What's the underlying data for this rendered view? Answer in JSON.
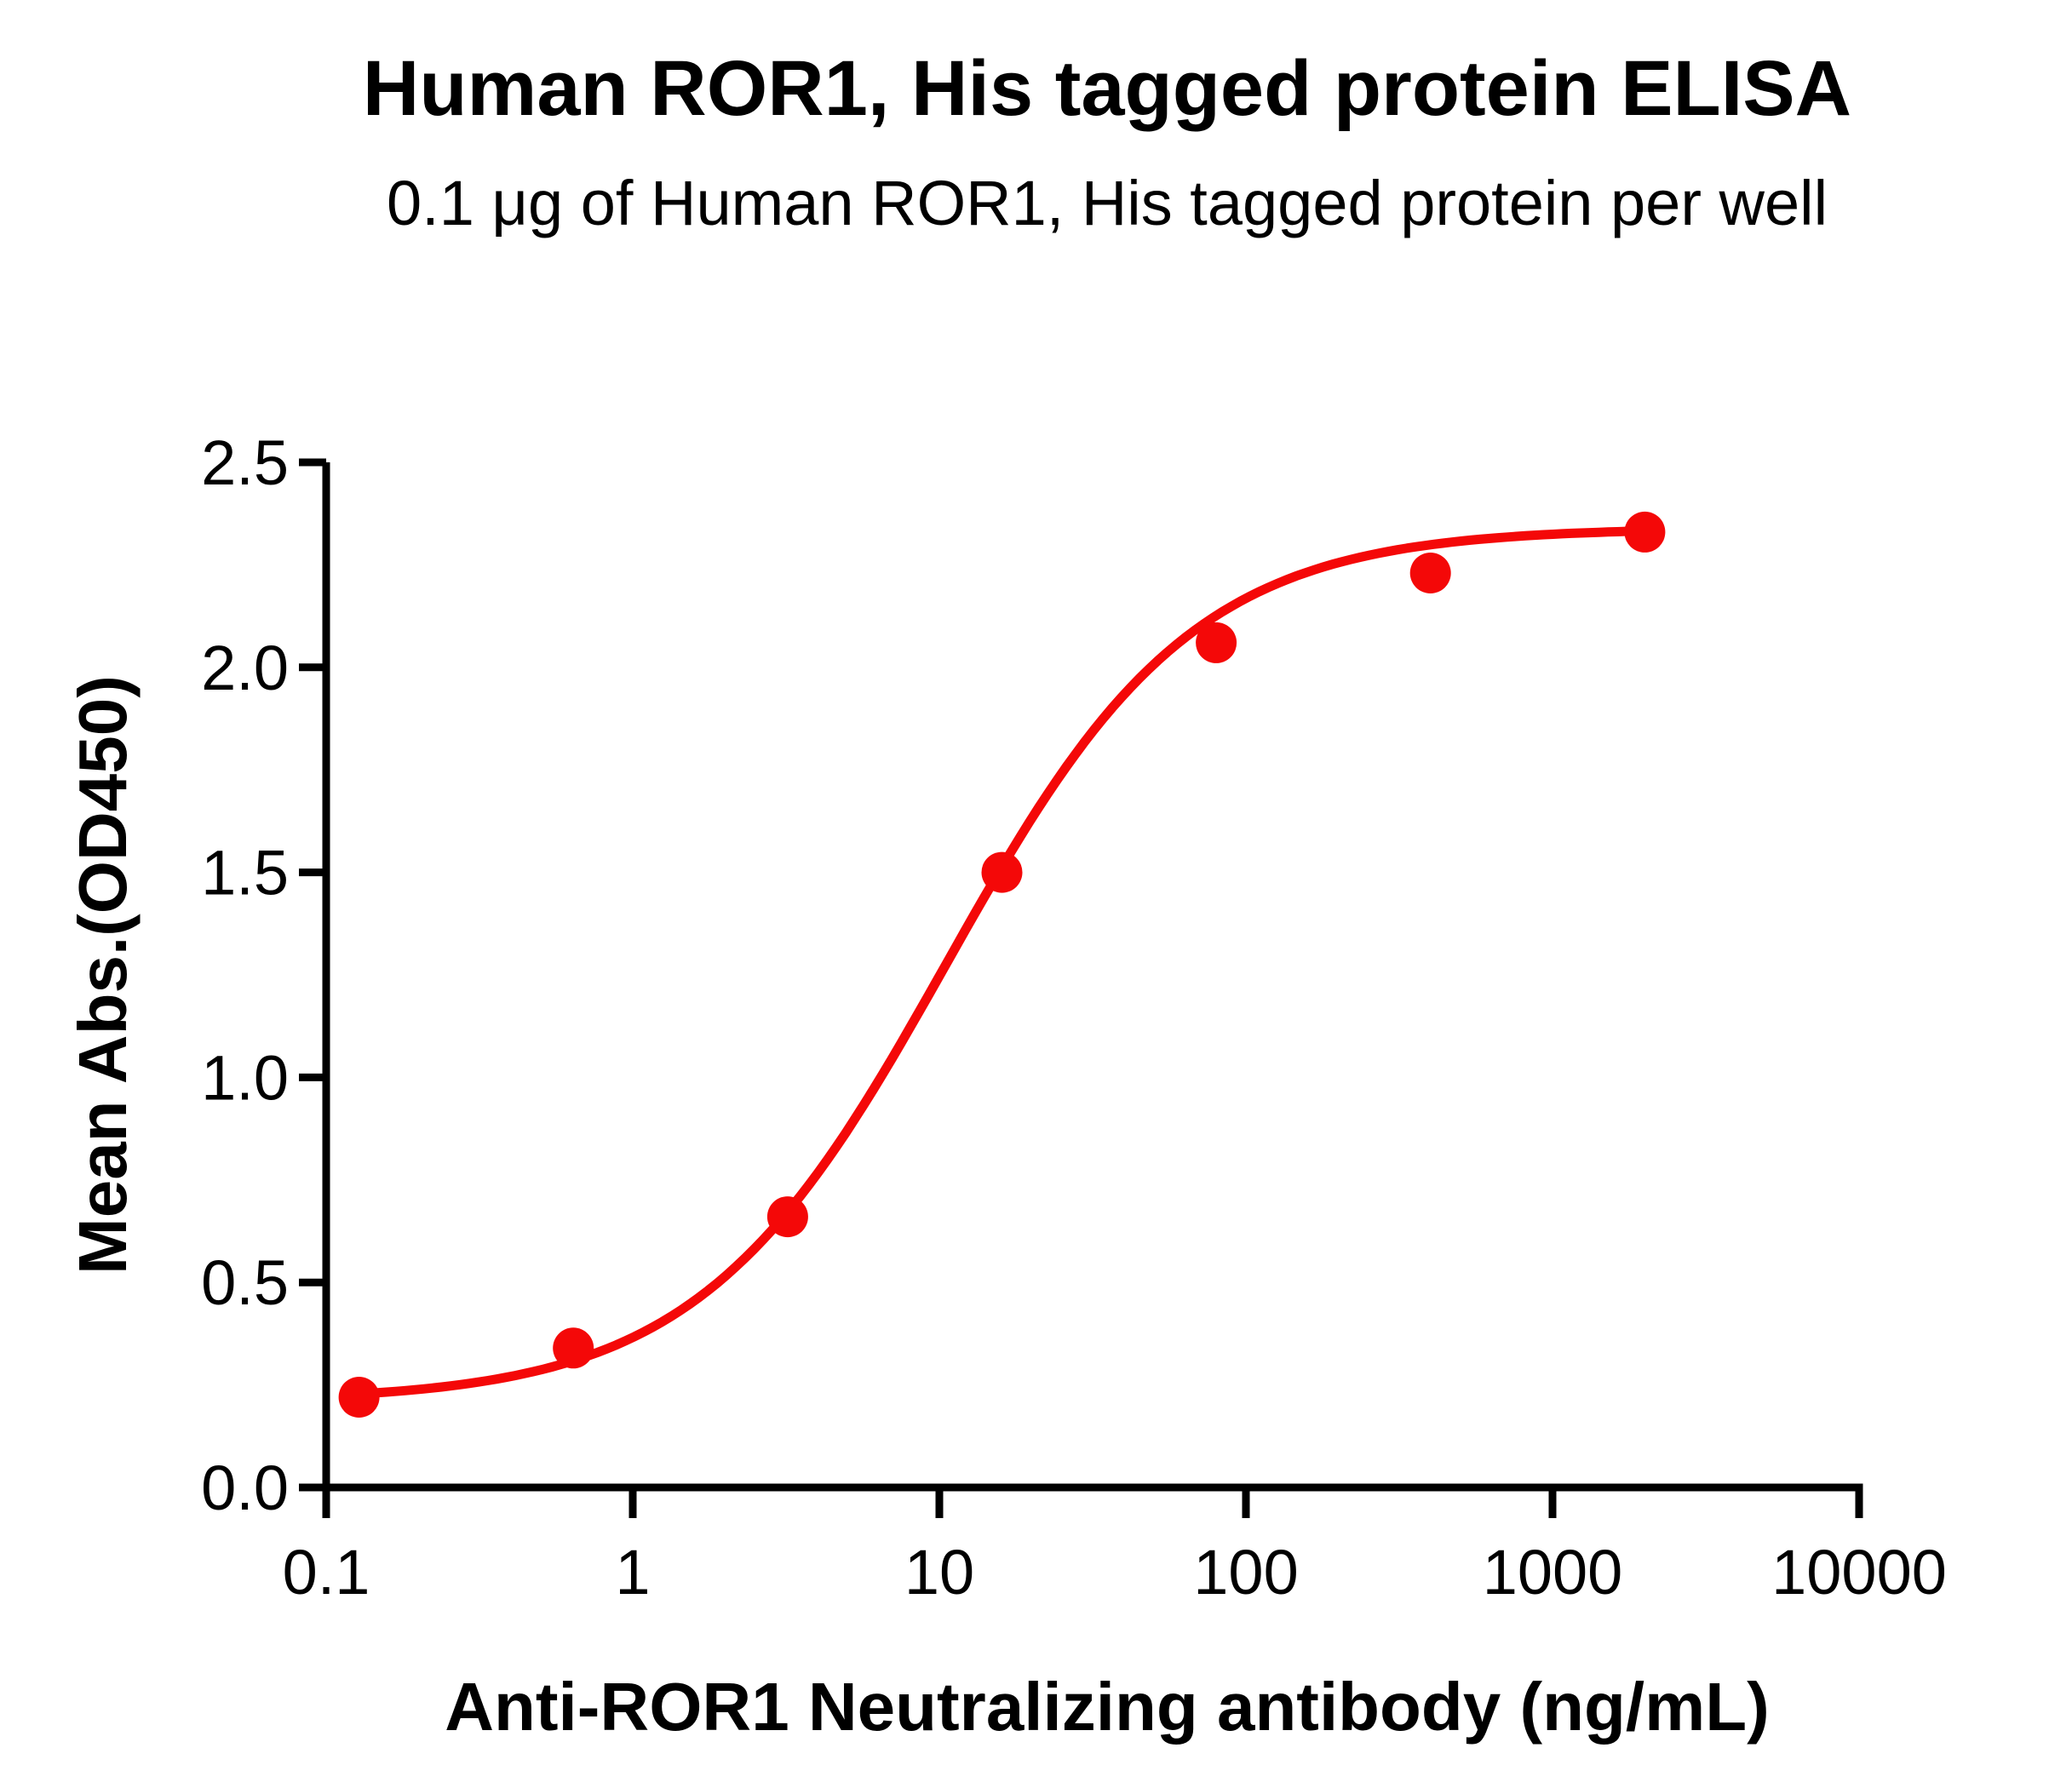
{
  "title": "Human ROR1, His tagged protein ELISA",
  "subtitle": "0.1 μg of Human ROR1, His tagged protein per well",
  "chart_data": {
    "type": "scatter",
    "title": "Human ROR1, His tagged protein ELISA",
    "subtitle": "0.1 μg of Human ROR1, His tagged protein per well",
    "xlabel": "Anti-ROR1 Neutralizing antibody (ng/mL)",
    "ylabel": "Mean Abs.(OD450)",
    "xscale": "log",
    "xlim": [
      0.1,
      10000
    ],
    "ylim": [
      0.0,
      2.5
    ],
    "grid": false,
    "legend": null,
    "x_tick_values": [
      0.1,
      1,
      10,
      100,
      1000,
      10000
    ],
    "x_ticks": [
      "0.1",
      "1",
      "10",
      "100",
      "1000",
      "10000"
    ],
    "y_tick_values": [
      0.0,
      0.5,
      1.0,
      1.5,
      2.0,
      2.5
    ],
    "y_ticks": [
      "0.0",
      "0.5",
      "1.0",
      "1.5",
      "2.0",
      "2.5"
    ],
    "series_name": "Anti-ROR1 Neutralizing antibody",
    "x": [
      0.128,
      0.64,
      3.2,
      16,
      80,
      400,
      2000
    ],
    "y": [
      0.22,
      0.34,
      0.66,
      1.5,
      2.06,
      2.23,
      2.33
    ],
    "fit": {
      "model": "4PL",
      "bottom": 0.21,
      "top": 2.34,
      "ec50": 10.5,
      "hill": 1.08
    },
    "series_color": "#f40808",
    "axis_color": "#000000"
  }
}
